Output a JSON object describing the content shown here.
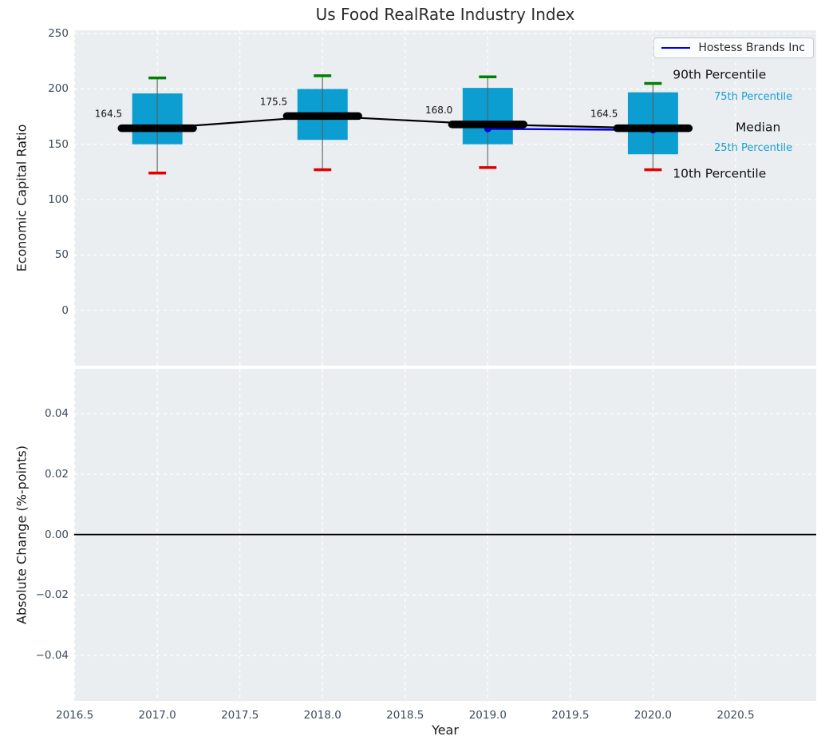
{
  "title": "Us Food RealRate Industry Index",
  "legend": {
    "label": "Hostess Brands Inc"
  },
  "colors": {
    "panel_bg": "#eaeef0",
    "grid": "#ffffff",
    "box_fill": "#0d9ed1",
    "whisker": "#5a5a5a",
    "cap_90": "#008000",
    "cap_10": "#e00000",
    "median_line": "#000000",
    "series_blue": "#0000e6",
    "percentile_text": "#1a9fd4",
    "annotation_text": "#111111",
    "tick_text": "#3d4a5e",
    "zero_line": "#000000"
  },
  "chart_data": [
    {
      "type": "boxplot-line",
      "panel": "top",
      "title": "Us Food RealRate Industry Index",
      "ylabel": "Economic Capital Ratio",
      "xlim": [
        2016.497,
        2020.988
      ],
      "ylim": [
        -50,
        253
      ],
      "yticks": [
        250,
        200,
        150,
        100,
        50,
        0
      ],
      "ytick_labels": [
        "250",
        "200",
        "150",
        "100",
        "50",
        "0"
      ],
      "xticks": [
        2016.5,
        2017.0,
        2017.5,
        2018.0,
        2018.5,
        2019.0,
        2019.5,
        2020.0,
        2020.5
      ],
      "grid": "white-dashed",
      "legend_position": "upper-right",
      "boxes": [
        {
          "year": 2017,
          "p10": 124,
          "p25": 150,
          "median": 164.5,
          "p75": 196,
          "p90": 210,
          "label": "164.5"
        },
        {
          "year": 2018,
          "p10": 127,
          "p25": 154,
          "median": 175.5,
          "p75": 200,
          "p90": 212,
          "label": "175.5"
        },
        {
          "year": 2019,
          "p10": 129,
          "p25": 150,
          "median": 168.0,
          "p75": 201,
          "p90": 211,
          "label": "168.0"
        },
        {
          "year": 2020,
          "p10": 127,
          "p25": 141,
          "median": 164.5,
          "p75": 197,
          "p90": 205,
          "label": "164.5"
        }
      ],
      "median_series": {
        "x": [
          2017,
          2018,
          2019,
          2020
        ],
        "y": [
          164.5,
          175.5,
          168.0,
          164.5
        ]
      },
      "series": [
        {
          "name": "Hostess Brands Inc",
          "x": [
            2019,
            2020
          ],
          "y": [
            164,
            163
          ]
        }
      ],
      "annotations": [
        {
          "label": "90th Percentile",
          "x": 2020.12,
          "y": 213.0,
          "style": "big"
        },
        {
          "label": "75th Percentile",
          "x": 2020.37,
          "y": 194.0,
          "style": "small"
        },
        {
          "label": "Median",
          "x": 2020.5,
          "y": 165.5,
          "style": "big"
        },
        {
          "label": "25th Percentile",
          "x": 2020.37,
          "y": 147.5,
          "style": "small"
        },
        {
          "label": "10th Percentile",
          "x": 2020.12,
          "y": 123.5,
          "style": "big"
        }
      ]
    },
    {
      "type": "line",
      "panel": "bottom",
      "ylabel": "Absolute Change (%-points)",
      "xlabel": "Year",
      "xlim": [
        2016.497,
        2020.988
      ],
      "ylim": [
        -0.0551,
        0.0549
      ],
      "yticks": [
        0.04,
        0.02,
        0.0,
        -0.02,
        -0.04
      ],
      "ytick_labels": [
        "0.04",
        "0.02",
        "0.00",
        "−0.02",
        "−0.04"
      ],
      "xticks": [
        2016.5,
        2017.0,
        2017.5,
        2018.0,
        2018.5,
        2019.0,
        2019.5,
        2020.0,
        2020.5
      ],
      "xtick_labels": [
        "2016.5",
        "2017.0",
        "2017.5",
        "2018.0",
        "2018.5",
        "2019.0",
        "2019.5",
        "2020.0",
        "2020.5"
      ],
      "grid": "white-dashed",
      "zero_line": true,
      "series": []
    }
  ]
}
